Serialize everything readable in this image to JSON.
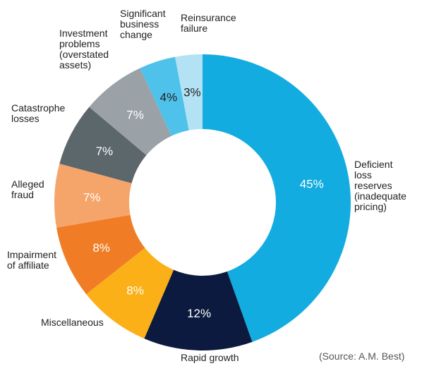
{
  "chart_data": {
    "type": "donut",
    "categories": [
      "Deficient\nloss\nreserves\n(inadequate\npricing)",
      "Rapid growth",
      "Miscellaneous",
      "Impairment\nof affiliate",
      "Alleged\nfraud",
      "Catastrophe\nlosses",
      "Investment\nproblems\n(overstated\nassets)",
      "Significant\nbusiness\nchange",
      "Reinsurance\nfailure"
    ],
    "values": [
      45,
      12,
      8,
      8,
      7,
      7,
      7,
      4,
      3
    ],
    "value_labels": [
      "45%",
      "12%",
      "8%",
      "8%",
      "7%",
      "7%",
      "7%",
      "4%",
      "3%"
    ],
    "colors": [
      "#12ace0",
      "#0b1a3e",
      "#fbb017",
      "#f07d26",
      "#f6a56a",
      "#5c676c",
      "#9aa2a8",
      "#4ec2ea",
      "#b2e2f4"
    ],
    "annotation": "(Source: A.M. Best)"
  }
}
